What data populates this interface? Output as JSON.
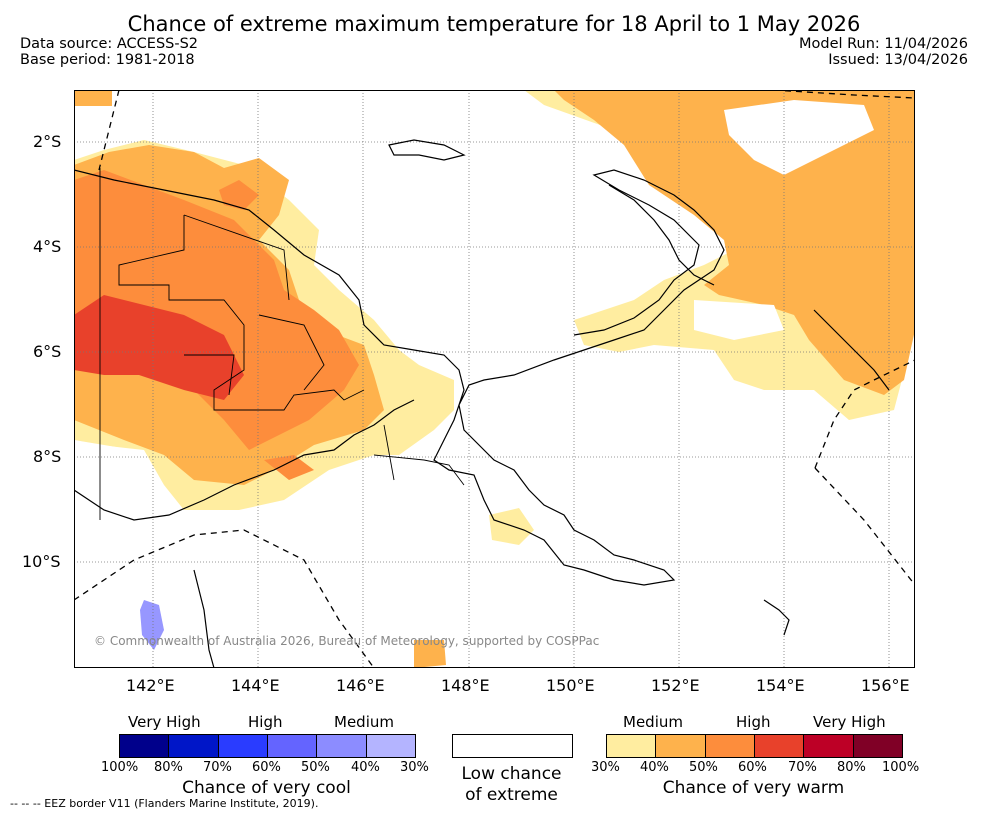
{
  "title": "Chance of extreme maximum temperature for 18 April to 1 May 2026",
  "meta": {
    "data_source": "Data source: ACCESS-S2",
    "base_period": "Base period: 1981-2018",
    "model_run": "Model Run: 11/04/2026",
    "issued": "Issued: 13/04/2026"
  },
  "map": {
    "lat_labels": [
      "2°S",
      "4°S",
      "6°S",
      "8°S",
      "10°S"
    ],
    "lon_labels": [
      "142°E",
      "144°E",
      "146°E",
      "148°E",
      "150°E",
      "152°E",
      "154°E",
      "156°E"
    ],
    "copyright": "© Commonwealth of Australia 2026, Bureau of Meteorology, supported by COSPPac",
    "colors": {
      "medium_warm": "#ffeda0",
      "high_warm_1": "#feb24c",
      "high_warm_2": "#fd8d3c",
      "very_high_warm": "#e8412b",
      "cool_medium": "#8c8cff"
    }
  },
  "legend": {
    "cool": {
      "headers": [
        "Very High",
        "High",
        "Medium"
      ],
      "percent_labels": [
        "100%",
        "80%",
        "70%",
        "60%",
        "50%",
        "40%",
        "30%"
      ],
      "colors": [
        "#00008b",
        "#0016c8",
        "#2a3cff",
        "#6464ff",
        "#8c8cff",
        "#b4b4ff"
      ],
      "caption": "Chance of very cool"
    },
    "low": {
      "caption_line1": "Low chance",
      "caption_line2": "of extreme"
    },
    "warm": {
      "headers": [
        "Medium",
        "High",
        "Very High"
      ],
      "percent_labels": [
        "30%",
        "40%",
        "50%",
        "60%",
        "70%",
        "80%",
        "100%"
      ],
      "colors": [
        "#ffeda0",
        "#feb24c",
        "#fd8d3c",
        "#e8412b",
        "#bd0026",
        "#800026"
      ],
      "caption": "Chance of very warm"
    },
    "eez_note": "-- -- -- EEZ border V11 (Flanders Marine Institute, 2019)."
  }
}
